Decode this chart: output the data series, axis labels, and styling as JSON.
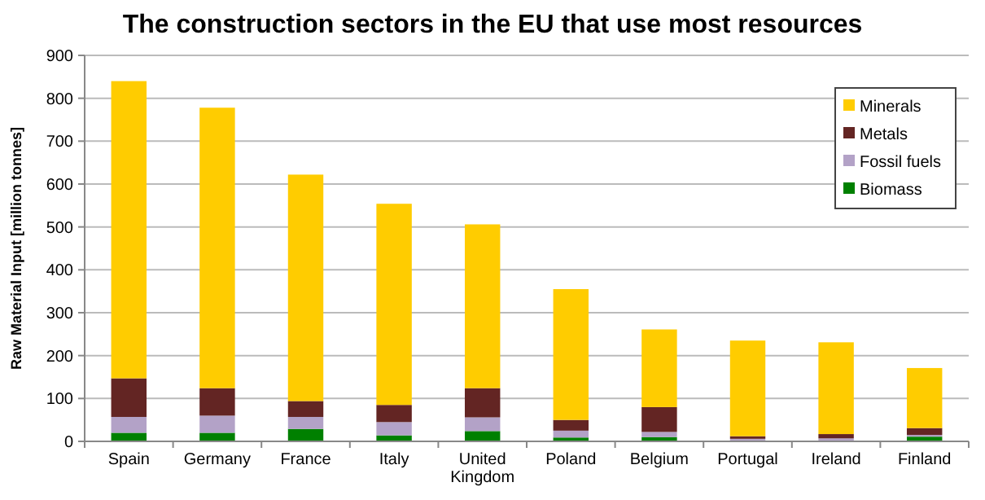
{
  "chart_data": {
    "type": "bar",
    "stacked": true,
    "title": "The construction sectors in the EU that use most resources",
    "ylabel": "Raw Material Input [million tonnes]",
    "categories": [
      "Spain",
      "Germany",
      "France",
      "Italy",
      "United Kingdom",
      "Poland",
      "Belgium",
      "Portugal",
      "Ireland",
      "Finland"
    ],
    "series": [
      {
        "name": "Biomass",
        "color": "#008000",
        "values": [
          20,
          20,
          29,
          14,
          24,
          9,
          10,
          2,
          2,
          11
        ]
      },
      {
        "name": "Fossil fuels",
        "color": "#b3a2c7",
        "values": [
          37,
          40,
          28,
          31,
          32,
          16,
          12,
          4,
          5,
          4
        ]
      },
      {
        "name": "Metals",
        "color": "#632523",
        "values": [
          90,
          64,
          37,
          40,
          68,
          25,
          58,
          6,
          10,
          16
        ]
      },
      {
        "name": "Minerals",
        "color": "#ffcc00",
        "values": [
          693,
          654,
          528,
          469,
          382,
          305,
          181,
          223,
          214,
          140
        ]
      }
    ],
    "ylim": [
      0,
      900
    ],
    "yticks": [
      0,
      100,
      200,
      300,
      400,
      500,
      600,
      700,
      800,
      900
    ],
    "grid": "y",
    "legend": "top right"
  }
}
